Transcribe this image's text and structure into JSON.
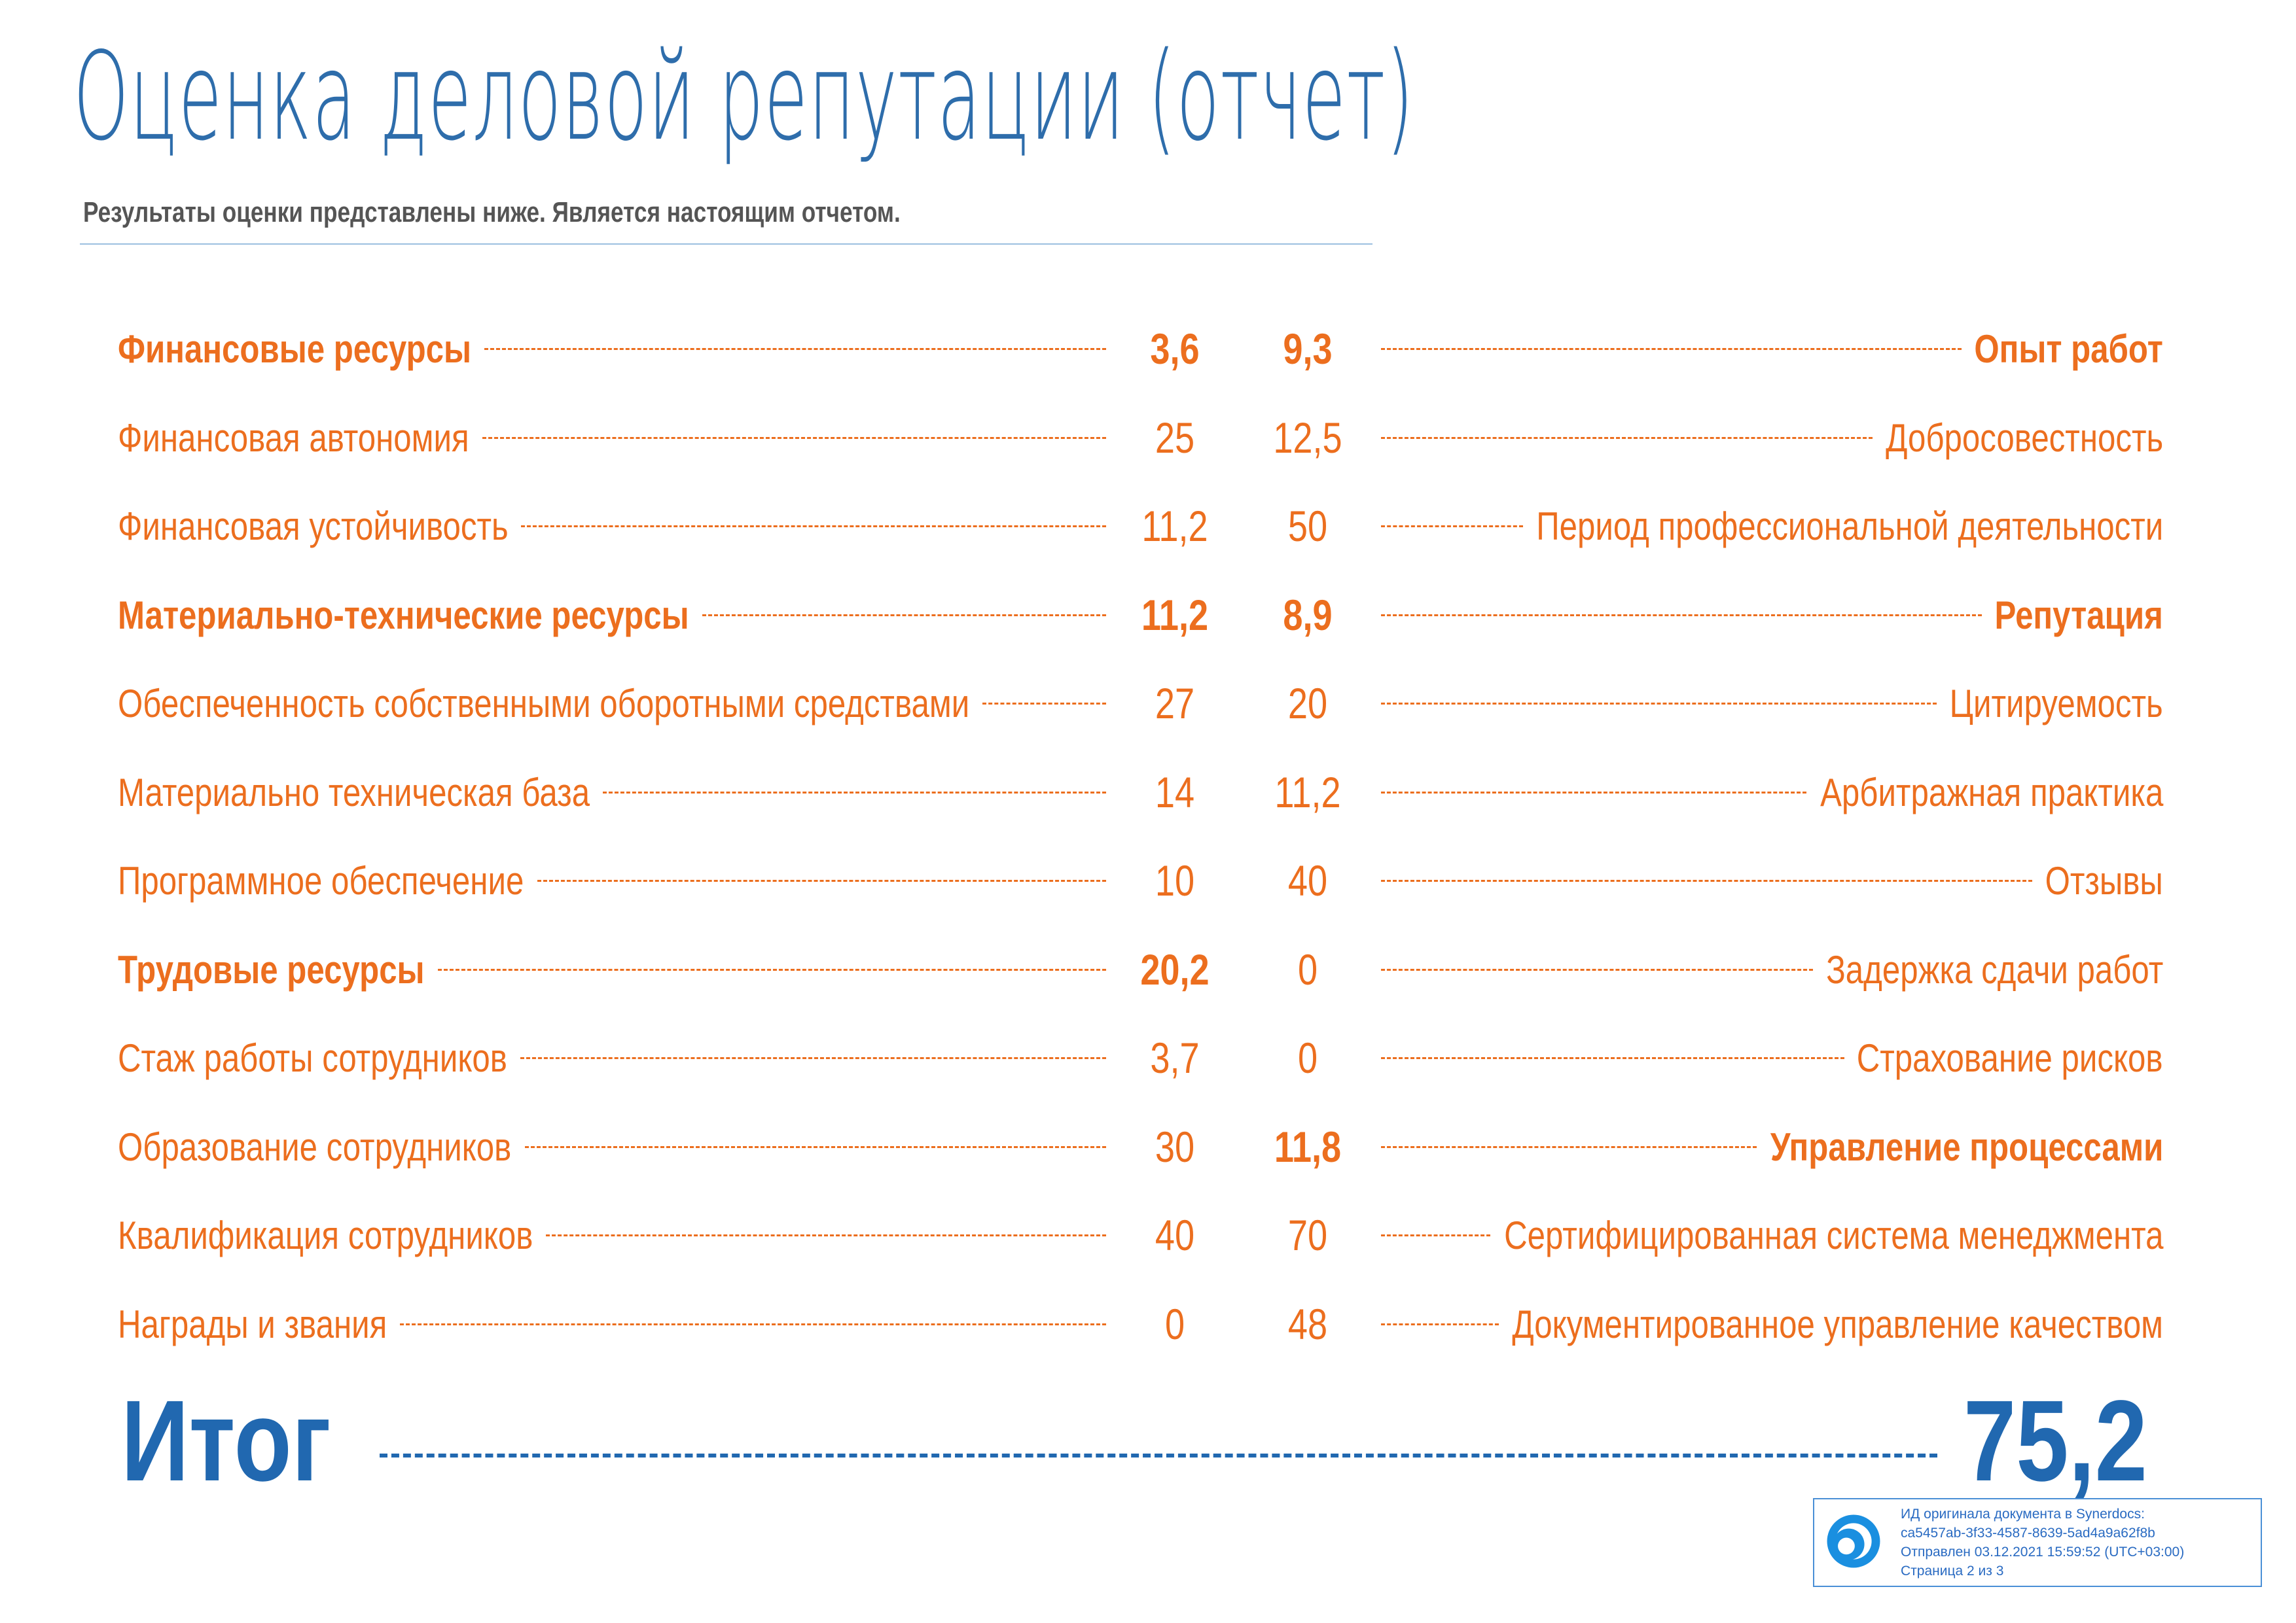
{
  "header": {
    "title": "Оценка деловой репутации (отчет)",
    "subtitle": "Результаты оценки представлены ниже. Является настоящим отчетом."
  },
  "left_column": [
    {
      "label": "Финансовые ресурсы",
      "value": "3,6",
      "bold": true
    },
    {
      "label": "Финансовая автономия",
      "value": "25",
      "bold": false
    },
    {
      "label": "Финансовая устойчивость",
      "value": "11,2",
      "bold": false
    },
    {
      "label": "Материально-технические ресурсы",
      "value": "11,2",
      "bold": true
    },
    {
      "label": "Обеспеченность собственными оборотными средствами",
      "value": "27",
      "bold": false
    },
    {
      "label": "Материально техническая база",
      "value": "14",
      "bold": false
    },
    {
      "label": "Программное обеспечение",
      "value": "10",
      "bold": false
    },
    {
      "label": "Трудовые ресурсы",
      "value": "20,2",
      "bold": true
    },
    {
      "label": "Стаж работы сотрудников",
      "value": "3,7",
      "bold": false
    },
    {
      "label": "Образование сотрудников",
      "value": "30",
      "bold": false
    },
    {
      "label": "Квалификация сотрудников",
      "value": "40",
      "bold": false
    },
    {
      "label": "Награды и звания",
      "value": "0",
      "bold": false
    }
  ],
  "right_column": [
    {
      "label": "Опыт работ",
      "value": "9,3",
      "bold": true
    },
    {
      "label": "Добросовестность",
      "value": "12,5",
      "bold": false
    },
    {
      "label": "Период профессиональной деятельности",
      "value": "50",
      "bold": false
    },
    {
      "label": "Репутация",
      "value": "8,9",
      "bold": true
    },
    {
      "label": "Цитируемость",
      "value": "20",
      "bold": false
    },
    {
      "label": "Арбитражная практика",
      "value": "11,2",
      "bold": false
    },
    {
      "label": "Отзывы",
      "value": "40",
      "bold": false
    },
    {
      "label": "Задержка сдачи работ",
      "value": "0",
      "bold": false
    },
    {
      "label": "Страхование рисков",
      "value": "0",
      "bold": false
    },
    {
      "label": "Управление процессами",
      "value": "11,8",
      "bold": true
    },
    {
      "label": "Сертифицированная система менеджмента",
      "value": "70",
      "bold": false
    },
    {
      "label": "Документированное управление качеством",
      "value": "48",
      "bold": false
    }
  ],
  "total": {
    "label": "Итог",
    "value": "75,2"
  },
  "stamp": {
    "line1": "ИД оригинала документа в Synerdocs:",
    "line2": "ca5457ab-3f33-4587-8639-5ad4a9a62f8b",
    "line3": "Отправлен 03.12.2021 15:59:52 (UTC+03:00)",
    "line4": "Страница 2 из 3"
  },
  "colors": {
    "accent": "#ec6e1e",
    "brand": "#2168b0"
  }
}
